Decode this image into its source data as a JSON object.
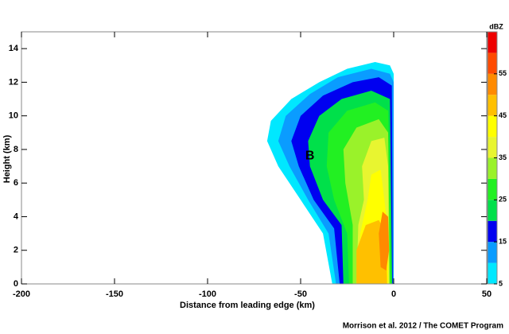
{
  "chart_data": {
    "type": "contour",
    "x_label": "Distance from leading edge (km)",
    "y_label": "Height (km)",
    "credit": "Morrison et al. 2012 / The COMET Program",
    "xlim": [
      -200,
      50
    ],
    "ylim": [
      0,
      15
    ],
    "xticks": [
      -200,
      -150,
      -100,
      -50,
      0,
      50
    ],
    "yticks": [
      0,
      2,
      4,
      6,
      8,
      10,
      12,
      14
    ],
    "colorbar": {
      "label": "dBZ",
      "lim": [
        5,
        65
      ],
      "ticks": [
        5,
        15,
        25,
        35,
        45,
        55
      ],
      "levels": [
        5,
        10,
        15,
        20,
        25,
        30,
        35,
        40,
        45,
        50,
        55,
        60
      ],
      "colors": [
        "#00e8ff",
        "#0a9cff",
        "#0000f0",
        "#00e04a",
        "#22f022",
        "#9af22a",
        "#e8f530",
        "#ffff00",
        "#ffc000",
        "#ff8a00",
        "#ff4a00",
        "#ee0000"
      ]
    },
    "contours": [
      {
        "level": 5,
        "x": [
          -33,
          -38,
          -50,
          -62,
          -68,
          -66,
          -55,
          -40,
          -25,
          -10,
          -2,
          0,
          0
        ],
        "y": [
          0,
          3,
          5,
          7,
          8.5,
          9.7,
          11,
          12,
          12.8,
          13.2,
          13,
          12.5,
          0
        ]
      },
      {
        "level": 10,
        "x": [
          -31,
          -35,
          -46,
          -56,
          -62,
          -58,
          -45,
          -30,
          -12,
          -2,
          0,
          0
        ],
        "y": [
          0,
          3,
          5,
          7,
          8.5,
          10,
          11.3,
          12.3,
          12.8,
          12.5,
          12,
          0
        ]
      },
      {
        "level": 15,
        "x": [
          -29,
          -32,
          -43,
          -51,
          -55,
          -50,
          -38,
          -22,
          -8,
          -1,
          -0.5
        ],
        "y": [
          0,
          3.3,
          5,
          7,
          8.5,
          10,
          11.2,
          12,
          12.3,
          11.8,
          0
        ]
      },
      {
        "level": 20,
        "x": [
          -27,
          -28,
          -38,
          -45,
          -46,
          -40,
          -28,
          -12,
          -2,
          -0.8
        ],
        "y": [
          0,
          3.5,
          5,
          7,
          8.5,
          10,
          11,
          11.5,
          11,
          0
        ]
      },
      {
        "level": 25,
        "x": [
          -24,
          -25,
          -32,
          -36,
          -35,
          -25,
          -10,
          -3,
          -1
        ],
        "y": [
          0,
          3,
          5,
          7,
          9,
          10.3,
          10.8,
          10.3,
          0
        ]
      },
      {
        "level": 30,
        "x": [
          -22,
          -22,
          -26,
          -27,
          -20,
          -8,
          -3,
          -2
        ],
        "y": [
          0,
          3.5,
          6,
          8,
          9.3,
          9.8,
          9,
          0
        ]
      },
      {
        "level": 35,
        "x": [
          -20,
          -19,
          -16,
          -17,
          -12,
          -5,
          -3,
          -2.5
        ],
        "y": [
          0,
          3.5,
          5,
          7,
          8.5,
          8.7,
          7,
          0
        ]
      },
      {
        "level": 40,
        "x": [
          -19,
          -18,
          -14,
          -12,
          -7,
          -5,
          -3,
          -3
        ],
        "y": [
          0,
          3,
          5,
          6.5,
          6.8,
          5,
          3,
          0
        ]
      },
      {
        "level": 45,
        "x": [
          -20,
          -20,
          -15,
          -8,
          -4,
          -3.5
        ],
        "y": [
          0,
          2,
          3.5,
          3.8,
          3,
          0
        ]
      },
      {
        "level": 50,
        "x": [
          -7,
          -8,
          -6,
          -3,
          -2.5,
          -4
        ],
        "y": [
          1,
          3,
          4.3,
          4,
          2,
          0.8
        ]
      }
    ],
    "annotations": [
      {
        "text": "B",
        "x": -45,
        "y": 7.6
      }
    ]
  }
}
